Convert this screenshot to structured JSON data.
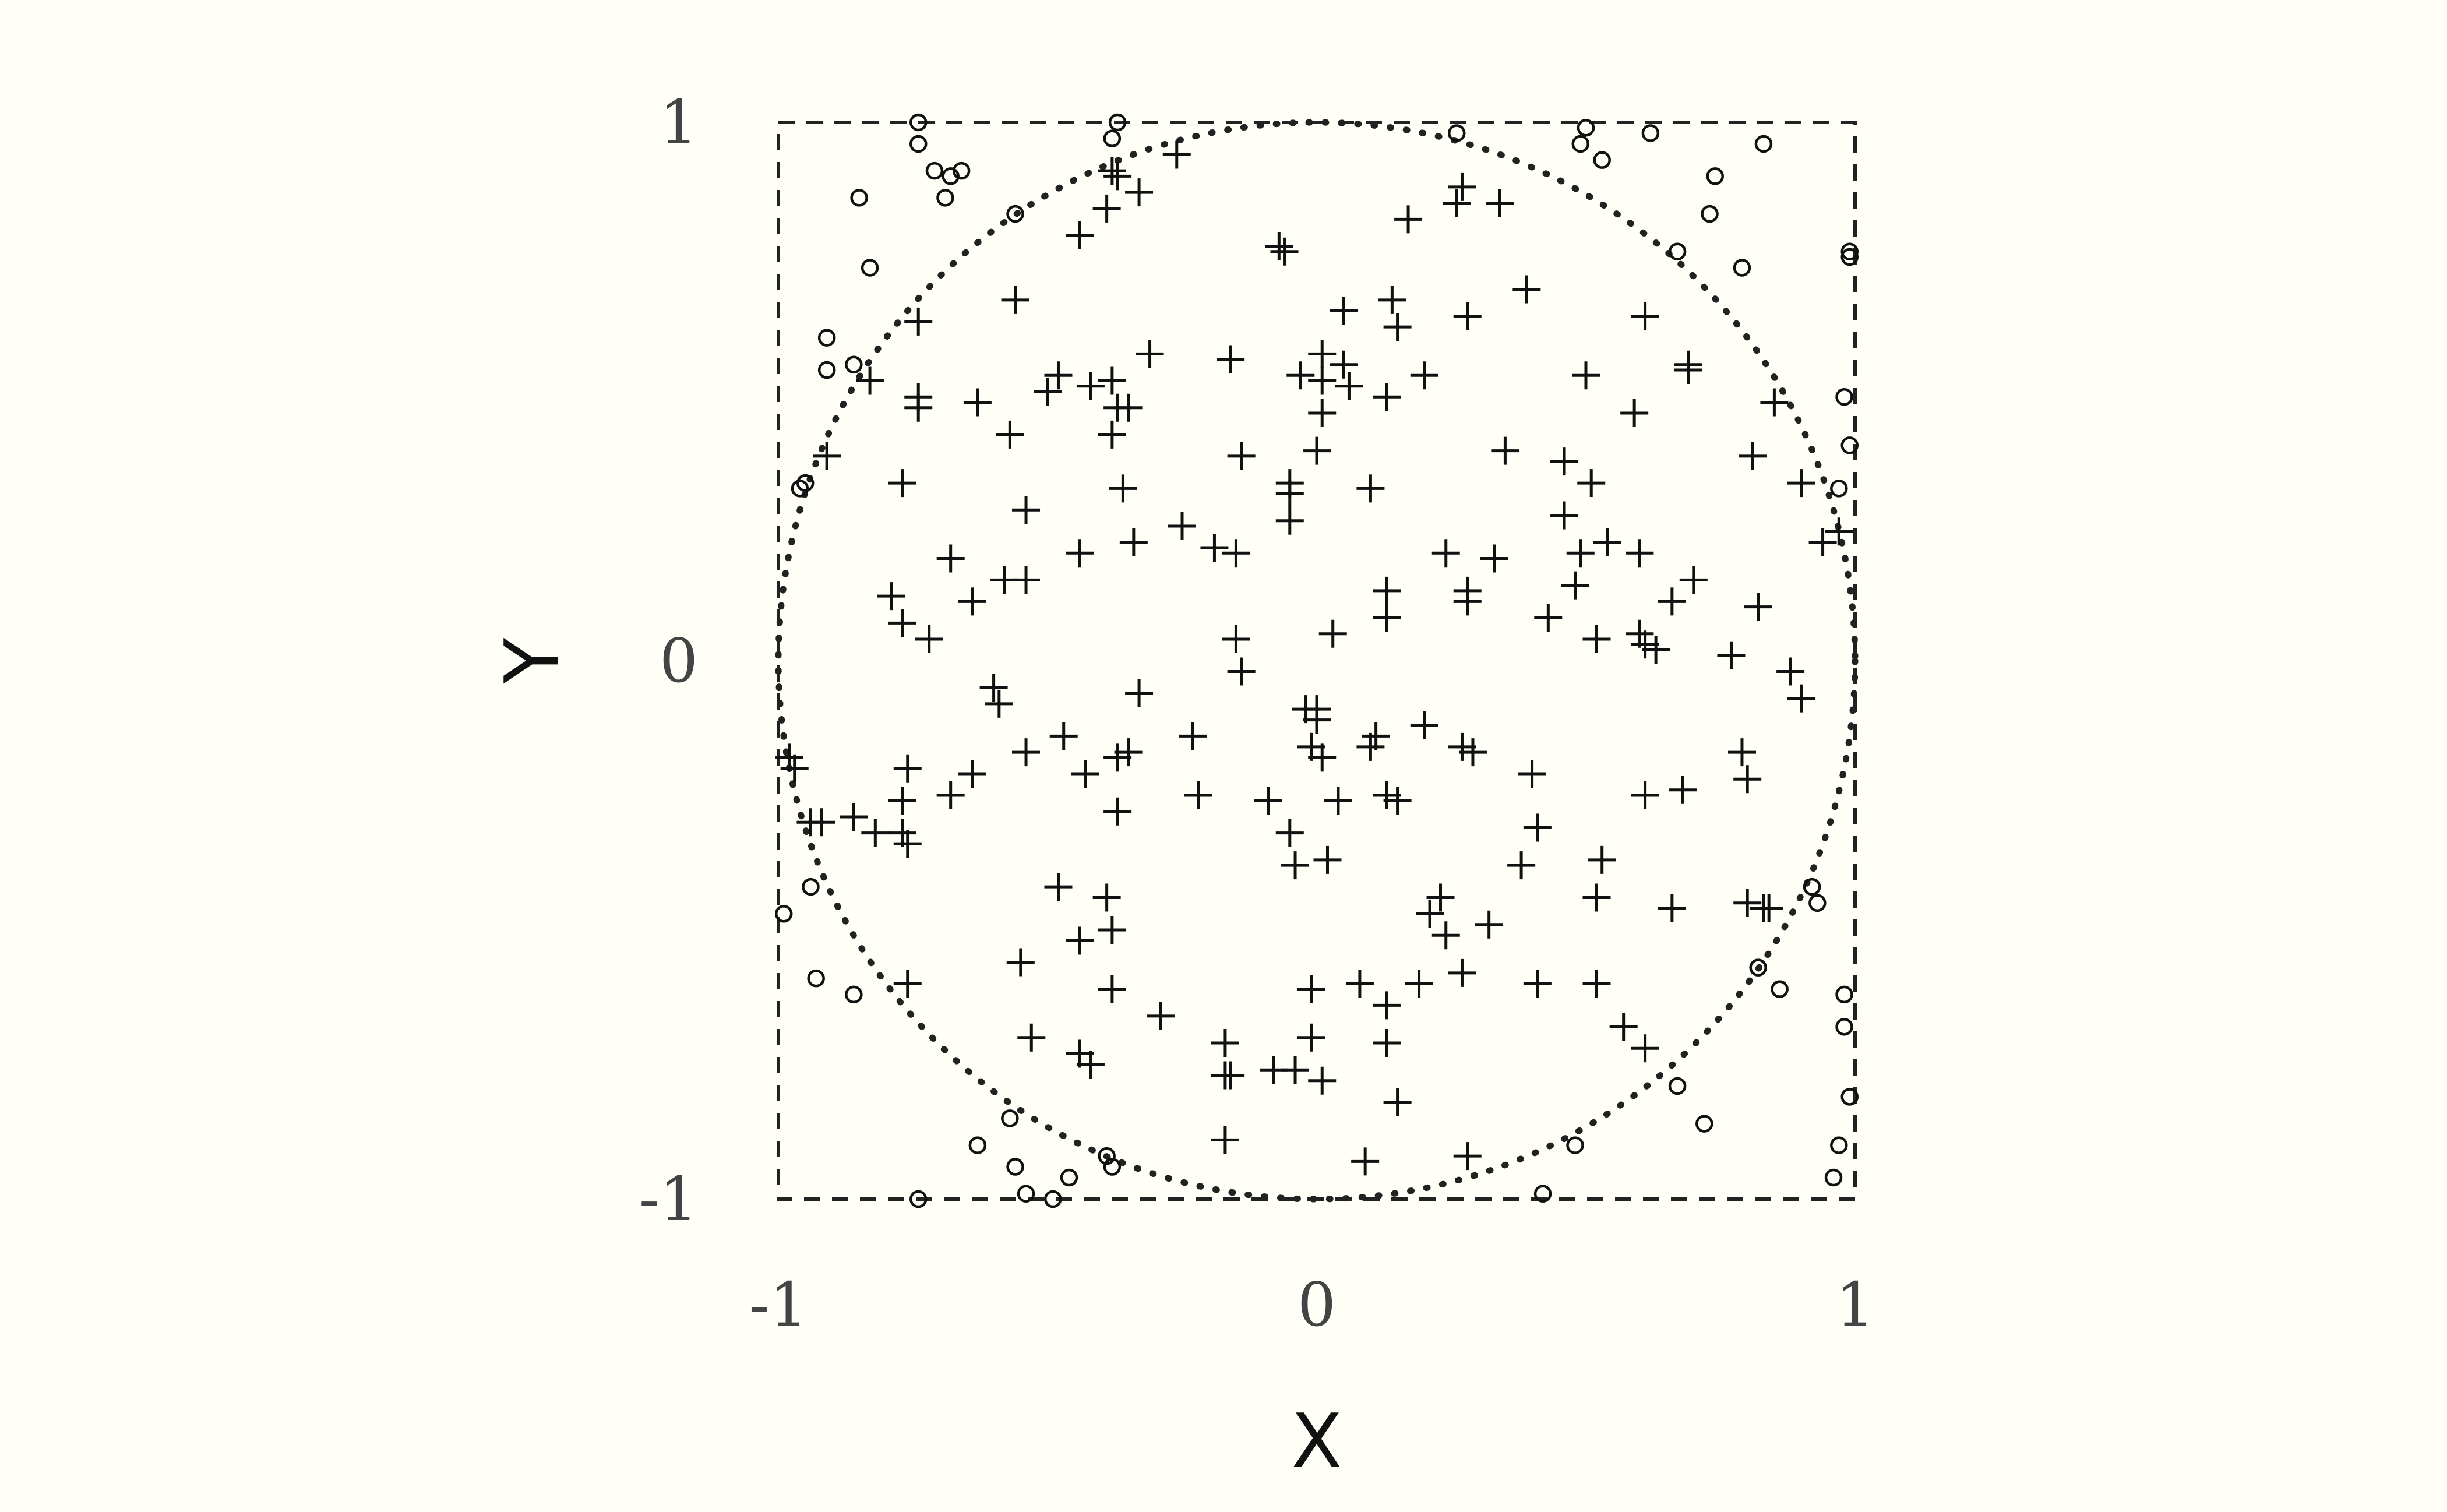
{
  "chart_data": {
    "type": "scatter",
    "title": "",
    "xlabel": "X",
    "ylabel": "Y",
    "xlim": [
      -1,
      1
    ],
    "ylim": [
      -1,
      1
    ],
    "xticks": [
      "-1",
      "0",
      "1"
    ],
    "yticks": [
      "-1",
      "0",
      "1"
    ],
    "grid": false,
    "legend": "none",
    "square": {
      "x": [
        -1,
        1
      ],
      "y": [
        -1,
        1
      ],
      "style": "dashed"
    },
    "circle": {
      "center": [
        0,
        0
      ],
      "radius": 1,
      "style": "dotted"
    },
    "series": [
      {
        "marker": "plus",
        "points": [
          [
            -0.26,
            0.94
          ],
          [
            -0.37,
            0.9
          ],
          [
            -0.33,
            0.87
          ],
          [
            -0.39,
            0.84
          ],
          [
            -0.44,
            0.79
          ],
          [
            -0.07,
            0.77
          ],
          [
            0.17,
            0.82
          ],
          [
            0.26,
            0.85
          ],
          [
            0.27,
            0.88
          ],
          [
            0.34,
            0.85
          ],
          [
            -0.56,
            0.67
          ],
          [
            -0.74,
            0.63
          ],
          [
            0.14,
            0.67
          ],
          [
            0.39,
            0.69
          ],
          [
            0.05,
            0.65
          ],
          [
            0.15,
            0.62
          ],
          [
            0.28,
            0.64
          ],
          [
            0.61,
            0.64
          ],
          [
            -0.31,
            0.57
          ],
          [
            -0.16,
            0.56
          ],
          [
            0.01,
            0.57
          ],
          [
            0.05,
            0.55
          ],
          [
            -0.48,
            0.53
          ],
          [
            -0.5,
            0.5
          ],
          [
            -0.42,
            0.51
          ],
          [
            -0.38,
            0.52
          ],
          [
            -0.03,
            0.53
          ],
          [
            0.01,
            0.52
          ],
          [
            0.06,
            0.51
          ],
          [
            0.13,
            0.49
          ],
          [
            0.2,
            0.53
          ],
          [
            0.5,
            0.53
          ],
          [
            0.69,
            0.55
          ],
          [
            0.69,
            0.54
          ],
          [
            -0.83,
            0.52
          ],
          [
            -0.74,
            0.49
          ],
          [
            -0.74,
            0.47
          ],
          [
            -0.63,
            0.48
          ],
          [
            -0.37,
            0.47
          ],
          [
            -0.35,
            0.47
          ],
          [
            -0.38,
            0.42
          ],
          [
            0.01,
            0.46
          ],
          [
            0.59,
            0.46
          ],
          [
            0.85,
            0.48
          ],
          [
            -0.91,
            0.38
          ],
          [
            -0.57,
            0.42
          ],
          [
            -0.14,
            0.38
          ],
          [
            0.0,
            0.39
          ],
          [
            0.35,
            0.39
          ],
          [
            0.46,
            0.37
          ],
          [
            0.81,
            0.38
          ],
          [
            -0.77,
            0.33
          ],
          [
            -0.36,
            0.32
          ],
          [
            -0.05,
            0.33
          ],
          [
            -0.05,
            0.31
          ],
          [
            0.1,
            0.32
          ],
          [
            0.51,
            0.33
          ],
          [
            0.9,
            0.33
          ],
          [
            -0.54,
            0.28
          ],
          [
            -0.05,
            0.26
          ],
          [
            0.46,
            0.27
          ],
          [
            -0.34,
            0.22
          ],
          [
            -0.25,
            0.25
          ],
          [
            -0.19,
            0.21
          ],
          [
            -0.15,
            0.2
          ],
          [
            -0.68,
            0.19
          ],
          [
            -0.44,
            0.2
          ],
          [
            0.24,
            0.2
          ],
          [
            0.33,
            0.19
          ],
          [
            0.49,
            0.2
          ],
          [
            0.54,
            0.22
          ],
          [
            0.6,
            0.2
          ],
          [
            0.94,
            0.22
          ],
          [
            0.97,
            0.24
          ],
          [
            -0.58,
            0.15
          ],
          [
            -0.54,
            0.15
          ],
          [
            0.13,
            0.13
          ],
          [
            0.28,
            0.13
          ],
          [
            0.48,
            0.14
          ],
          [
            0.66,
            0.11
          ],
          [
            0.7,
            0.15
          ],
          [
            -0.79,
            0.12
          ],
          [
            -0.64,
            0.11
          ],
          [
            0.28,
            0.11
          ],
          [
            -0.77,
            0.07
          ],
          [
            -0.72,
            0.04
          ],
          [
            0.13,
            0.08
          ],
          [
            0.43,
            0.08
          ],
          [
            0.52,
            0.04
          ],
          [
            0.6,
            0.05
          ],
          [
            0.61,
            0.03
          ],
          [
            0.63,
            0.02
          ],
          [
            0.82,
            0.1
          ],
          [
            -0.15,
            0.04
          ],
          [
            0.03,
            0.05
          ],
          [
            0.77,
            0.01
          ],
          [
            -0.14,
            -0.02
          ],
          [
            0.88,
            -0.02
          ],
          [
            -0.6,
            -0.05
          ],
          [
            -0.59,
            -0.08
          ],
          [
            -0.33,
            -0.06
          ],
          [
            0.9,
            -0.07
          ],
          [
            -0.02,
            -0.09
          ],
          [
            0.0,
            -0.09
          ],
          [
            0.0,
            -0.11
          ],
          [
            -0.47,
            -0.14
          ],
          [
            -0.23,
            -0.14
          ],
          [
            0.11,
            -0.14
          ],
          [
            0.2,
            -0.12
          ],
          [
            -0.54,
            -0.17
          ],
          [
            -0.37,
            -0.18
          ],
          [
            -0.35,
            -0.17
          ],
          [
            -0.01,
            -0.16
          ],
          [
            0.01,
            -0.18
          ],
          [
            0.1,
            -0.16
          ],
          [
            0.27,
            -0.16
          ],
          [
            0.29,
            -0.17
          ],
          [
            0.79,
            -0.17
          ],
          [
            -0.98,
            -0.18
          ],
          [
            -0.97,
            -0.2
          ],
          [
            -0.76,
            -0.2
          ],
          [
            -0.64,
            -0.21
          ],
          [
            -0.43,
            -0.21
          ],
          [
            0.4,
            -0.21
          ],
          [
            0.8,
            -0.22
          ],
          [
            -0.77,
            -0.26
          ],
          [
            -0.68,
            -0.25
          ],
          [
            -0.22,
            -0.25
          ],
          [
            -0.09,
            -0.26
          ],
          [
            0.04,
            -0.26
          ],
          [
            0.13,
            -0.25
          ],
          [
            0.15,
            -0.26
          ],
          [
            0.61,
            -0.25
          ],
          [
            0.68,
            -0.24
          ],
          [
            -0.37,
            -0.28
          ],
          [
            -0.94,
            -0.3
          ],
          [
            -0.92,
            -0.3
          ],
          [
            -0.86,
            -0.29
          ],
          [
            -0.82,
            -0.32
          ],
          [
            -0.77,
            -0.32
          ],
          [
            -0.76,
            -0.34
          ],
          [
            -0.05,
            -0.32
          ],
          [
            0.41,
            -0.31
          ],
          [
            -0.04,
            -0.38
          ],
          [
            0.02,
            -0.37
          ],
          [
            0.38,
            -0.38
          ],
          [
            0.53,
            -0.37
          ],
          [
            -0.48,
            -0.42
          ],
          [
            -0.39,
            -0.44
          ],
          [
            0.23,
            -0.44
          ],
          [
            0.52,
            -0.44
          ],
          [
            0.66,
            -0.46
          ],
          [
            0.8,
            -0.45
          ],
          [
            0.83,
            -0.46
          ],
          [
            0.84,
            -0.46
          ],
          [
            0.21,
            -0.47
          ],
          [
            0.32,
            -0.49
          ],
          [
            -0.38,
            -0.5
          ],
          [
            -0.44,
            -0.52
          ],
          [
            0.24,
            -0.51
          ],
          [
            -0.55,
            -0.56
          ],
          [
            -0.76,
            -0.6
          ],
          [
            -0.38,
            -0.61
          ],
          [
            -0.01,
            -0.61
          ],
          [
            0.08,
            -0.6
          ],
          [
            0.13,
            -0.64
          ],
          [
            0.19,
            -0.6
          ],
          [
            0.27,
            -0.58
          ],
          [
            0.41,
            -0.6
          ],
          [
            0.52,
            -0.6
          ],
          [
            -0.29,
            -0.66
          ],
          [
            -0.53,
            -0.7
          ],
          [
            -0.17,
            -0.71
          ],
          [
            -0.01,
            -0.7
          ],
          [
            0.13,
            -0.71
          ],
          [
            0.57,
            -0.68
          ],
          [
            0.61,
            -0.72
          ],
          [
            -0.44,
            -0.73
          ],
          [
            -0.42,
            -0.75
          ],
          [
            -0.17,
            -0.77
          ],
          [
            -0.16,
            -0.77
          ],
          [
            -0.08,
            -0.76
          ],
          [
            -0.04,
            -0.76
          ],
          [
            0.01,
            -0.78
          ],
          [
            0.15,
            -0.82
          ],
          [
            -0.17,
            -0.89
          ],
          [
            0.09,
            -0.93
          ],
          [
            0.28,
            -0.92
          ],
          [
            -0.06,
            0.76
          ],
          [
            -0.38,
            0.91
          ]
        ]
      },
      {
        "marker": "circle",
        "points": [
          [
            -0.74,
            1.0
          ],
          [
            -0.37,
            1.0
          ],
          [
            0.5,
            0.99
          ],
          [
            -0.74,
            0.96
          ],
          [
            -0.38,
            0.97
          ],
          [
            0.26,
            0.98
          ],
          [
            0.49,
            0.96
          ],
          [
            0.62,
            0.98
          ],
          [
            0.83,
            0.96
          ],
          [
            -0.71,
            0.91
          ],
          [
            -0.68,
            0.9
          ],
          [
            -0.66,
            0.91
          ],
          [
            0.53,
            0.93
          ],
          [
            0.74,
            0.9
          ],
          [
            -0.85,
            0.86
          ],
          [
            -0.69,
            0.86
          ],
          [
            -0.56,
            0.83
          ],
          [
            0.73,
            0.83
          ],
          [
            0.67,
            0.76
          ],
          [
            0.99,
            0.76
          ],
          [
            0.99,
            0.75
          ],
          [
            -0.83,
            0.73
          ],
          [
            0.79,
            0.73
          ],
          [
            -0.91,
            0.6
          ],
          [
            -0.91,
            0.54
          ],
          [
            -0.86,
            0.55
          ],
          [
            0.98,
            0.49
          ],
          [
            0.99,
            0.4
          ],
          [
            -0.95,
            0.33
          ],
          [
            -0.96,
            0.32
          ],
          [
            0.97,
            0.32
          ],
          [
            -0.99,
            -0.47
          ],
          [
            -0.94,
            -0.42
          ],
          [
            0.93,
            -0.45
          ],
          [
            0.92,
            -0.42
          ],
          [
            -0.93,
            -0.59
          ],
          [
            -0.86,
            -0.62
          ],
          [
            0.82,
            -0.57
          ],
          [
            0.86,
            -0.61
          ],
          [
            0.98,
            -0.62
          ],
          [
            0.98,
            -0.68
          ],
          [
            0.99,
            -0.81
          ],
          [
            0.67,
            -0.79
          ],
          [
            0.72,
            -0.86
          ],
          [
            -0.57,
            -0.85
          ],
          [
            -0.63,
            -0.9
          ],
          [
            0.48,
            -0.9
          ],
          [
            0.97,
            -0.9
          ],
          [
            -0.56,
            -0.94
          ],
          [
            -0.39,
            -0.92
          ],
          [
            -0.38,
            -0.94
          ],
          [
            -0.46,
            -0.96
          ],
          [
            0.96,
            -0.96
          ],
          [
            -0.74,
            -1.0
          ],
          [
            -0.54,
            -0.99
          ],
          [
            -0.49,
            -1.0
          ],
          [
            0.42,
            -0.99
          ]
        ]
      }
    ]
  }
}
